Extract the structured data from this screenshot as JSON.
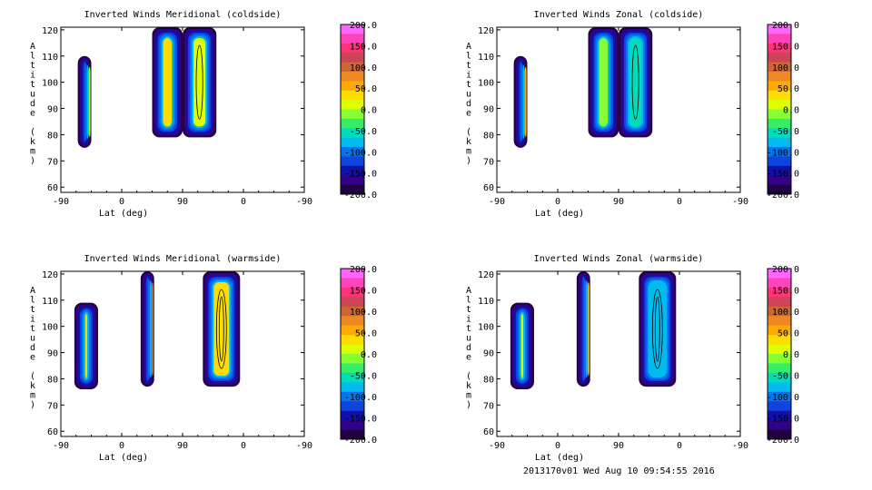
{
  "footer": "2013170v01 Wed Aug 10 09:54:55 2016",
  "colorbar": {
    "ticks": [
      "200.0",
      "150.0",
      "100.0",
      "50.0",
      "0.0",
      "-50.0",
      "-100.0",
      "-150.0",
      "-200.0"
    ],
    "colors_top_to_bottom": [
      "#ff66ff",
      "#ff44bb",
      "#ff3377",
      "#cc4455",
      "#cc6633",
      "#ee8822",
      "#ffaa00",
      "#ffdd00",
      "#ddff00",
      "#88ff33",
      "#33ee66",
      "#00ddbb",
      "#00bbee",
      "#0077ee",
      "#1144dd",
      "#1111aa",
      "#330088",
      "#220044"
    ]
  },
  "chart_data": [
    {
      "type": "heatmap",
      "title": "Inverted Winds Meridional (coldside)",
      "xlabel": "Lat (deg)",
      "ylabel": "Altitude (km)",
      "xticks": [
        "-90",
        "0",
        "90",
        "0",
        "-90"
      ],
      "yticks": [
        "60",
        "70",
        "80",
        "90",
        "100",
        "110",
        "120"
      ],
      "ylim": [
        58,
        121
      ],
      "colorbar_range": [
        -200,
        200
      ],
      "colorbar_label": "none",
      "regions": [
        {
          "x": [
            -65,
            -45
          ],
          "alt": [
            75,
            110
          ],
          "dominant_value": 0
        },
        {
          "x": [
            45,
            90
          ],
          "alt": [
            79,
            121
          ],
          "dominant_value": 40
        },
        {
          "x": [
            90,
            140
          ],
          "alt": [
            79,
            121
          ],
          "dominant_value": 10
        }
      ]
    },
    {
      "type": "heatmap",
      "title": "Inverted Winds Zonal (coldside)",
      "xlabel": "Lat (deg)",
      "ylabel": "Altitude (km)",
      "xticks": [
        "-90",
        "0",
        "90",
        "0",
        "-90"
      ],
      "yticks": [
        "60",
        "70",
        "80",
        "90",
        "100",
        "110",
        "120"
      ],
      "ylim": [
        58,
        121
      ],
      "colorbar_range": [
        -200,
        200
      ],
      "regions": [
        {
          "x": [
            -65,
            -45
          ],
          "alt": [
            75,
            110
          ],
          "dominant_value": 50
        },
        {
          "x": [
            45,
            90
          ],
          "alt": [
            79,
            121
          ],
          "dominant_value": 0
        },
        {
          "x": [
            90,
            140
          ],
          "alt": [
            79,
            121
          ],
          "dominant_value": -60
        }
      ]
    },
    {
      "type": "heatmap",
      "title": "Inverted Winds Meridional (warmside)",
      "xlabel": "Lat (deg)",
      "ylabel": "Altitude (km)",
      "xticks": [
        "-90",
        "0",
        "90",
        "0",
        "-90"
      ],
      "yticks": [
        "60",
        "70",
        "80",
        "90",
        "100",
        "110",
        "120"
      ],
      "ylim": [
        58,
        121
      ],
      "colorbar_range": [
        -200,
        200
      ],
      "regions": [
        {
          "x": [
            -70,
            -35
          ],
          "alt": [
            76,
            109
          ],
          "dominant_value": 30
        },
        {
          "x": [
            28,
            48
          ],
          "alt": [
            77,
            121
          ],
          "dominant_value": 100
        },
        {
          "x": [
            120,
            175
          ],
          "alt": [
            77,
            121
          ],
          "dominant_value": 40
        }
      ]
    },
    {
      "type": "heatmap",
      "title": "Inverted Winds Zonal (warmside)",
      "xlabel": "Lat (deg)",
      "ylabel": "Altitude (km)",
      "xticks": [
        "-90",
        "0",
        "90",
        "0",
        "-90"
      ],
      "yticks": [
        "60",
        "70",
        "80",
        "90",
        "100",
        "110",
        "120"
      ],
      "ylim": [
        58,
        121
      ],
      "colorbar_range": [
        -200,
        200
      ],
      "regions": [
        {
          "x": [
            -70,
            -35
          ],
          "alt": [
            76,
            109
          ],
          "dominant_value": 10
        },
        {
          "x": [
            28,
            48
          ],
          "alt": [
            77,
            121
          ],
          "dominant_value": 50
        },
        {
          "x": [
            120,
            175
          ],
          "alt": [
            77,
            121
          ],
          "dominant_value": -90
        }
      ]
    }
  ]
}
